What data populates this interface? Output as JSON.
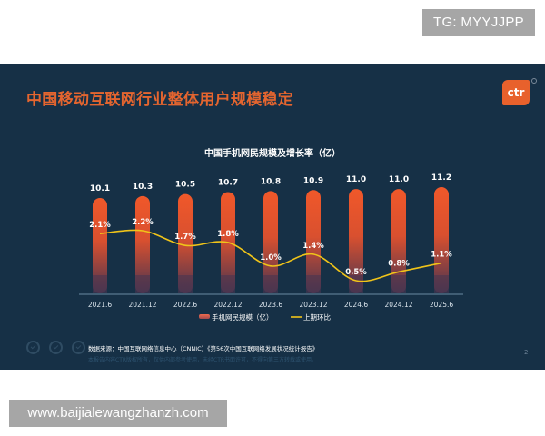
{
  "watermark_top": "TG: MYYJJPP",
  "watermark_bottom": "www.baijialewangzhanzh.com",
  "slide": {
    "title": "中国移动互联网行业整体用户规模稳定",
    "logo_text": "ctr",
    "page_number": "2",
    "source": "数据来源：中国互联网络信息中心（CNNIC）《第56次中国互联网络发展状况统计报告》",
    "disclaimer": "本报告内容CTR版权所有，仅供内部参考使用，未经CTR书面许可，不得向第三方转载或使用。"
  },
  "colors": {
    "background": "#163046",
    "title": "#e4652f",
    "bar_top": "#f0582a",
    "bar_bottom": "#4a3550",
    "line": "#f0c419"
  },
  "chart_data": {
    "type": "bar",
    "title": "中国手机网民规模及增长率（亿）",
    "categories": [
      "2021.6",
      "2021.12",
      "2022.6",
      "2022.12",
      "2023.6",
      "2023.12",
      "2024.6",
      "2024.12",
      "2025.6"
    ],
    "series": [
      {
        "name": "手机网民规模（亿）",
        "type": "bar",
        "values": [
          10.1,
          10.3,
          10.5,
          10.7,
          10.8,
          10.9,
          11.0,
          11.0,
          11.2
        ],
        "labels": [
          "10.1",
          "10.3",
          "10.5",
          "10.7",
          "10.8",
          "10.9",
          "11.0",
          "11.0",
          "11.2"
        ]
      },
      {
        "name": "上期环比",
        "type": "line",
        "values": [
          2.1,
          2.2,
          1.7,
          1.8,
          1.0,
          1.4,
          0.5,
          0.8,
          1.1
        ],
        "labels": [
          "2.1%",
          "2.2%",
          "1.7%",
          "1.8%",
          "1.0%",
          "1.4%",
          "0.5%",
          "0.8%",
          "1.1%"
        ]
      }
    ],
    "legend": [
      "手机网民规模（亿）",
      "上期环比"
    ],
    "legend_position": "bottom",
    "xlabel": "",
    "ylabel": "",
    "grid": false
  }
}
